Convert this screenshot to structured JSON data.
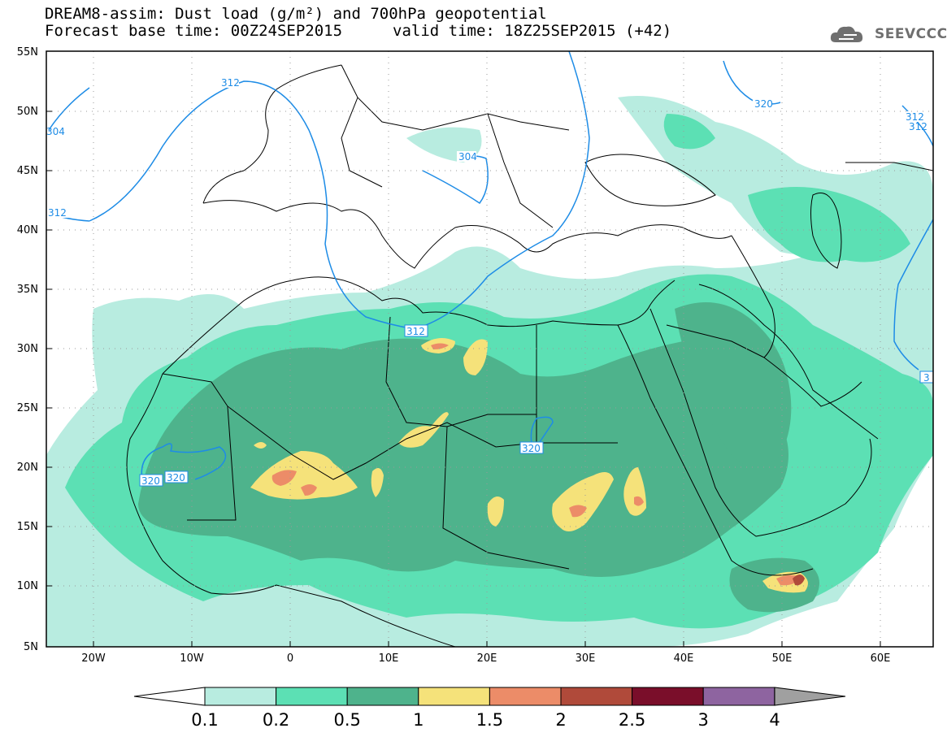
{
  "header": {
    "title_line1": "DREAM8-assim: Dust load (g/m²) and 700hPa geopotential",
    "title_line2": "Forecast base time: 00Z24SEP2015",
    "valid_time": "valid time: 18Z25SEP2015 (+42)",
    "logo_text": "SEEVCCC"
  },
  "map": {
    "lat_ticks": [
      "55N",
      "50N",
      "45N",
      "40N",
      "35N",
      "30N",
      "25N",
      "20N",
      "15N",
      "10N",
      "5N"
    ],
    "lon_ticks": [
      "20W",
      "10W",
      "0",
      "10E",
      "20E",
      "30E",
      "40E",
      "50E",
      "60E"
    ],
    "contour_labels": [
      "312",
      "304",
      "320",
      "312",
      "312",
      "320",
      "320",
      "320",
      "312",
      "304",
      "312",
      "3"
    ]
  },
  "colorbar": {
    "labels": [
      "0.1",
      "0.2",
      "0.5",
      "1",
      "1.5",
      "2",
      "2.5",
      "3",
      "4"
    ],
    "colors": [
      "#b8ece0",
      "#5ce0b4",
      "#4eb38c",
      "#f5e27a",
      "#ec8c68",
      "#b04a3a",
      "#7a0e2a",
      "#8e64a0"
    ],
    "low_color": "#ffffff",
    "high_color": "#a0a0a0"
  },
  "dust_colors": {
    "c01": "#b8ece0",
    "c02": "#5ce0b4",
    "c05": "#4eb38c",
    "c1": "#f5e27a",
    "c15": "#ec8c68",
    "c2": "#b04a3a"
  },
  "contour_color": "#1e8ce6"
}
